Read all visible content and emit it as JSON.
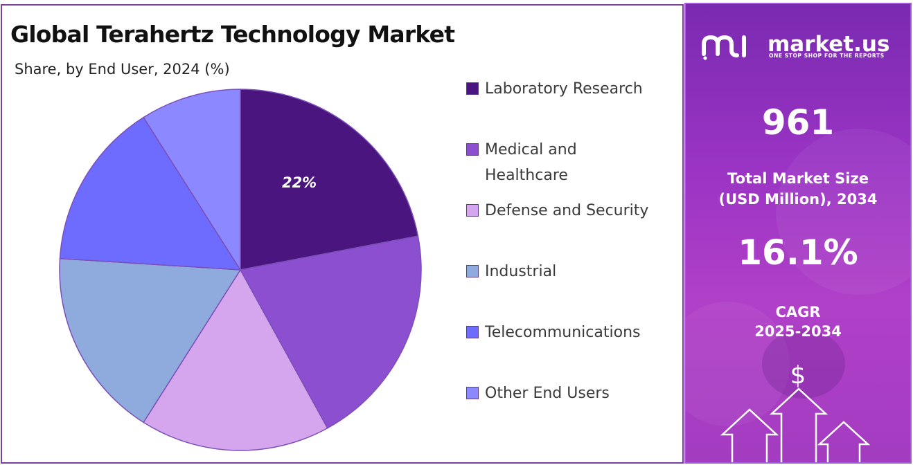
{
  "title": "Global Terahertz Technology Market",
  "subtitle": "Share, by End User, 2024 (%)",
  "chart_data": {
    "type": "pie",
    "categories": [
      "Laboratory Research",
      "Medical and Healthcare",
      "Defense and Security",
      "Industrial",
      "Telecommunications",
      "Other End Users"
    ],
    "values": [
      22,
      20,
      17,
      17,
      15,
      9
    ],
    "data_labels": [
      "22%",
      "",
      "",
      "",
      "",
      ""
    ],
    "colors": [
      "#4b1580",
      "#8c4fd0",
      "#d5a6ee",
      "#8faadc",
      "#6e6cfe",
      "#8c88ff"
    ],
    "legend_position": "right"
  },
  "legend": [
    {
      "label": "Laboratory Research",
      "color": "#4b1580"
    },
    {
      "label": "Medical and Healthcare",
      "color": "#8c4fd0"
    },
    {
      "label": "Defense and Security",
      "color": "#d5a6ee"
    },
    {
      "label": "Industrial",
      "color": "#8faadc"
    },
    {
      "label": "Telecommunications",
      "color": "#6e6cfe"
    },
    {
      "label": "Other End Users",
      "color": "#8c88ff"
    }
  ],
  "sidebar": {
    "brand_name": "market.us",
    "brand_tagline": "ONE STOP SHOP FOR THE REPORTS",
    "market_size_value": "961",
    "market_size_label_line1": "Total Market Size",
    "market_size_label_line2": "(USD Million), 2034",
    "cagr_value": "16.1%",
    "cagr_label_line1": "CAGR",
    "cagr_label_line2": "2025-2034",
    "dollar_symbol": "$"
  }
}
